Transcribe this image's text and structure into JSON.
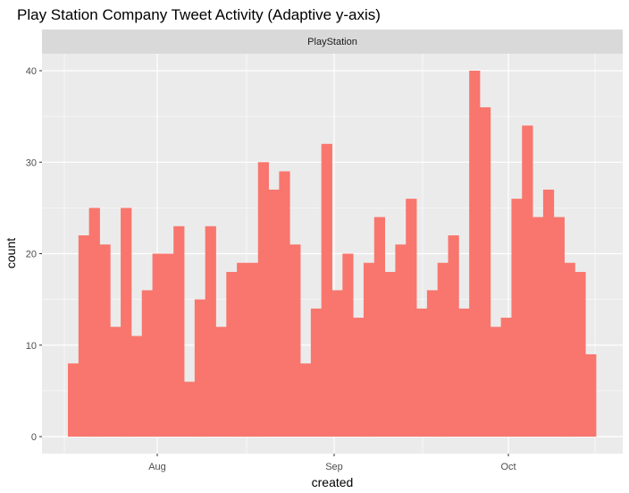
{
  "chart_data": {
    "type": "bar",
    "title": "Play Station Company Tweet Activity (Adaptive y-axis)",
    "facet_label": "PlayStation",
    "xlabel": "created",
    "ylabel": "count",
    "ylim": [
      0,
      40
    ],
    "y_ticks": [
      0,
      10,
      20,
      30,
      40
    ],
    "x_ticks": [
      "Aug",
      "Sep",
      "Oct"
    ],
    "bar_color": "#F8766D",
    "panel_background": "#EBEBEB",
    "strip_background": "#D9D9D9",
    "grid": true,
    "values": [
      8,
      22,
      25,
      21,
      12,
      25,
      11,
      16,
      20,
      20,
      23,
      6,
      15,
      23,
      12,
      18,
      19,
      19,
      30,
      27,
      29,
      21,
      8,
      14,
      32,
      16,
      20,
      13,
      19,
      24,
      18,
      21,
      26,
      14,
      16,
      19,
      22,
      14,
      40,
      36,
      12,
      13,
      26,
      34,
      24,
      27,
      24,
      19,
      18,
      9
    ]
  }
}
